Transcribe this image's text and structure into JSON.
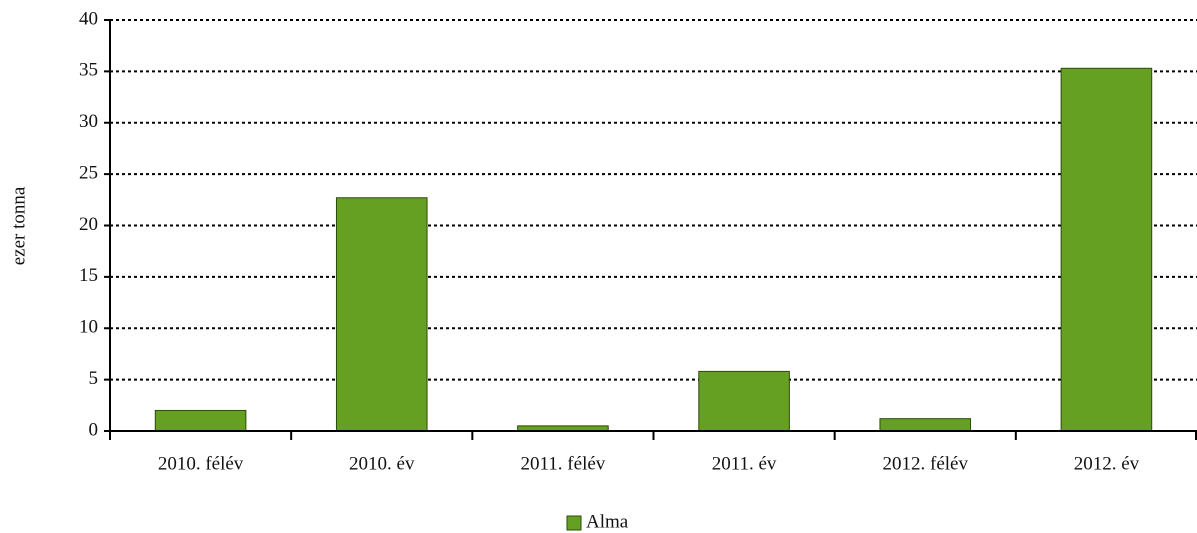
{
  "chart_data": {
    "type": "bar",
    "ylabel": "ezer tonna",
    "categories": [
      "2010. félév",
      "2010. év",
      "2011. félév",
      "2011. év",
      "2012. félév",
      "2012. év"
    ],
    "series": [
      {
        "name": "Alma",
        "color": "#65a022",
        "values": [
          2.0,
          22.7,
          0.5,
          5.8,
          1.2,
          35.3
        ]
      }
    ],
    "ylim": [
      0,
      40
    ],
    "yticks": [
      0,
      5,
      10,
      15,
      20,
      25,
      30,
      35,
      40
    ],
    "grid": true,
    "legend": "bottom"
  }
}
